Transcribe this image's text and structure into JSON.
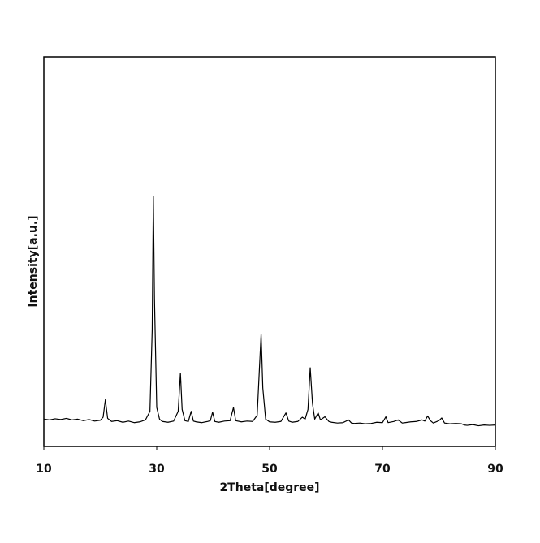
{
  "chart_data": {
    "type": "line",
    "x_label": "2Theta[degree]",
    "y_label": "Intensity[a.u.]",
    "xlim": [
      10,
      90
    ],
    "xticks": [
      10,
      30,
      50,
      70,
      90
    ],
    "ylim": [
      0,
      100
    ],
    "series": [
      {
        "color": "#000000",
        "x": [
          10,
          11,
          12,
          13,
          14,
          15,
          16,
          17,
          18,
          19,
          20,
          20.5,
          20.9,
          21.3,
          22,
          23,
          24,
          25,
          26,
          27,
          28,
          28.8,
          29.2,
          29.4,
          29.6,
          30,
          30.5,
          31,
          32,
          33,
          33.8,
          34.2,
          34.5,
          35,
          35.6,
          36.1,
          36.5,
          37,
          38,
          39,
          39.5,
          39.9,
          40.3,
          41,
          42,
          43,
          43.6,
          44,
          45,
          46,
          47,
          47.8,
          48.2,
          48.5,
          48.8,
          49.3,
          50,
          51,
          52,
          52.9,
          53.4,
          54,
          55,
          55.8,
          56.3,
          56.8,
          57.2,
          57.6,
          58,
          58.6,
          59,
          59.8,
          60.5,
          61,
          62,
          63,
          64,
          64.5,
          65,
          66,
          67,
          68,
          69,
          70,
          70.6,
          71,
          72,
          72.8,
          73.5,
          74,
          75,
          76,
          77,
          77.5,
          78,
          78.5,
          79,
          80,
          80.5,
          81,
          82,
          83,
          84,
          84.5,
          85,
          86,
          87,
          88,
          89,
          90
        ],
        "values": [
          7.0,
          6.8,
          7.1,
          6.9,
          7.2,
          6.8,
          7.0,
          6.6,
          6.9,
          6.5,
          6.7,
          7.5,
          12.0,
          7.2,
          6.4,
          6.6,
          6.2,
          6.5,
          6.1,
          6.3,
          6.8,
          9.0,
          30,
          64.2,
          38,
          10,
          7.0,
          6.4,
          6.2,
          6.5,
          9.0,
          18.8,
          9.5,
          6.6,
          6.4,
          9.0,
          6.5,
          6.3,
          6.1,
          6.4,
          6.6,
          8.8,
          6.4,
          6.2,
          6.5,
          6.6,
          10.0,
          6.6,
          6.3,
          6.5,
          6.4,
          8.0,
          20,
          28.8,
          15,
          7.0,
          6.3,
          6.2,
          6.4,
          8.6,
          6.5,
          6.2,
          6.4,
          7.5,
          7.0,
          9.5,
          20.2,
          11,
          7.0,
          8.6,
          6.8,
          7.6,
          6.4,
          6.2,
          6.0,
          6.1,
          6.8,
          6.0,
          5.9,
          6.0,
          5.8,
          5.9,
          6.2,
          6.1,
          7.6,
          6.1,
          6.4,
          6.8,
          6.0,
          6.1,
          6.3,
          6.4,
          6.8,
          6.5,
          7.8,
          6.6,
          6.0,
          6.6,
          7.3,
          6.0,
          5.8,
          5.9,
          5.8,
          5.5,
          5.4,
          5.6,
          5.3,
          5.5,
          5.4,
          5.5
        ]
      }
    ]
  }
}
